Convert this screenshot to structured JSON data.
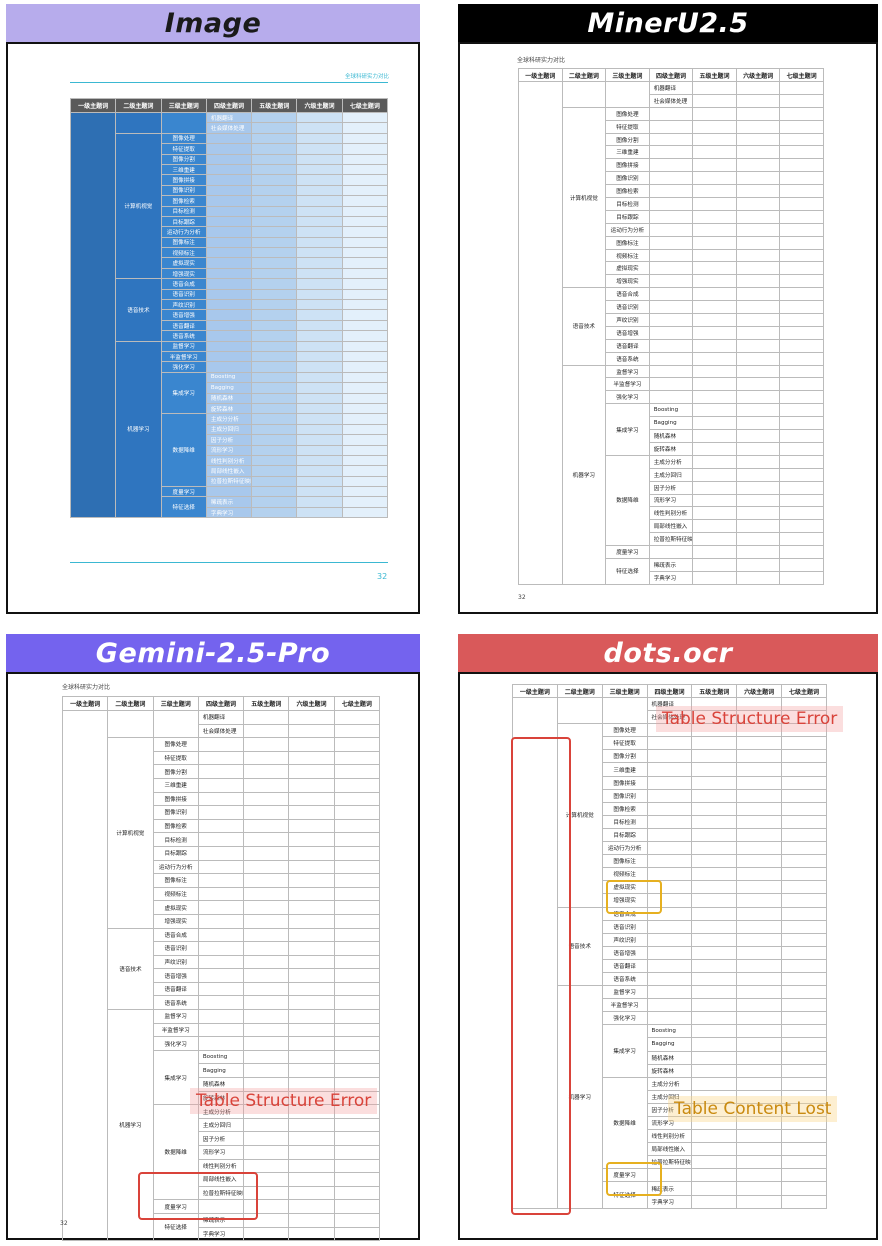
{
  "panels": [
    {
      "id": "image",
      "label": "Image",
      "bar_color": "#b7acec",
      "text_color": "#1a1a1a"
    },
    {
      "id": "mineru",
      "label": "MinerU2.5",
      "bar_color": "#000000",
      "text_color": "#ffffff"
    },
    {
      "id": "gemini",
      "label": "Gemini-2.5-Pro",
      "bar_color": "#7463ee",
      "text_color": "#ffffff"
    },
    {
      "id": "dots",
      "label": "dots.ocr",
      "bar_color": "#d9595a",
      "text_color": "#ffffff"
    }
  ],
  "doc": {
    "header_text": "全球科研实力对比",
    "page_number": "32",
    "header_color": "#3bb8d2",
    "columns": [
      "一级主题词",
      "二级主题词",
      "三级主题词",
      "四级主题词",
      "五级主题词",
      "六级主题词",
      "七级主题词"
    ]
  },
  "annotations": {
    "table_structure_error": "Table Structure Error",
    "table_content_lost": "Table Content Lost",
    "red": "#d9433a",
    "yellow": "#e6b020"
  },
  "table_rows": [
    {
      "l2": "",
      "l3": "",
      "l4": "机器翻译"
    },
    {
      "l2": "",
      "l3": "",
      "l4": "社会媒体处理"
    },
    {
      "l2": "计算机视觉",
      "l3": "图像处理",
      "l4": ""
    },
    {
      "l2": "计算机视觉",
      "l3": "特征提取",
      "l4": ""
    },
    {
      "l2": "计算机视觉",
      "l3": "图像分割",
      "l4": ""
    },
    {
      "l2": "计算机视觉",
      "l3": "三维重建",
      "l4": ""
    },
    {
      "l2": "计算机视觉",
      "l3": "图像拼接",
      "l4": ""
    },
    {
      "l2": "计算机视觉",
      "l3": "图像识别",
      "l4": ""
    },
    {
      "l2": "计算机视觉",
      "l3": "图像检索",
      "l4": ""
    },
    {
      "l2": "计算机视觉",
      "l3": "目标检测",
      "l4": ""
    },
    {
      "l2": "计算机视觉",
      "l3": "目标跟踪",
      "l4": ""
    },
    {
      "l2": "计算机视觉",
      "l3": "运动行为分析",
      "l4": ""
    },
    {
      "l2": "计算机视觉",
      "l3": "图像标注",
      "l4": ""
    },
    {
      "l2": "计算机视觉",
      "l3": "视频标注",
      "l4": ""
    },
    {
      "l2": "计算机视觉",
      "l3": "虚拟现实",
      "l4": ""
    },
    {
      "l2": "计算机视觉",
      "l3": "增强现实",
      "l4": ""
    },
    {
      "l2": "语音技术",
      "l3": "语音合成",
      "l4": ""
    },
    {
      "l2": "语音技术",
      "l3": "语音识别",
      "l4": ""
    },
    {
      "l2": "语音技术",
      "l3": "声纹识别",
      "l4": ""
    },
    {
      "l2": "语音技术",
      "l3": "语音增强",
      "l4": ""
    },
    {
      "l2": "语音技术",
      "l3": "语音翻译",
      "l4": ""
    },
    {
      "l2": "语音技术",
      "l3": "语音系统",
      "l4": ""
    },
    {
      "l2": "机器学习",
      "l3": "监督学习",
      "l4": ""
    },
    {
      "l2": "机器学习",
      "l3": "半监督学习",
      "l4": ""
    },
    {
      "l2": "机器学习",
      "l3": "强化学习",
      "l4": ""
    },
    {
      "l2": "机器学习",
      "l3": "集成学习",
      "l4": "Boosting"
    },
    {
      "l2": "机器学习",
      "l3": "集成学习",
      "l4": "Bagging"
    },
    {
      "l2": "机器学习",
      "l3": "集成学习",
      "l4": "随机森林"
    },
    {
      "l2": "机器学习",
      "l3": "集成学习",
      "l4": "旋转森林"
    },
    {
      "l2": "机器学习",
      "l3": "数据降维",
      "l4": "主成分分析"
    },
    {
      "l2": "机器学习",
      "l3": "数据降维",
      "l4": "主成分回归"
    },
    {
      "l2": "机器学习",
      "l3": "数据降维",
      "l4": "因子分析"
    },
    {
      "l2": "机器学习",
      "l3": "数据降维",
      "l4": "流形学习"
    },
    {
      "l2": "机器学习",
      "l3": "数据降维",
      "l4": "线性判别分析"
    },
    {
      "l2": "机器学习",
      "l3": "数据降维",
      "l4": "局部线性嵌入"
    },
    {
      "l2": "机器学习",
      "l3": "数据降维",
      "l4": "拉普拉斯特征映射"
    },
    {
      "l2": "机器学习",
      "l3": "度量学习",
      "l4": ""
    },
    {
      "l2": "机器学习",
      "l3": "特征选择",
      "l4": "稀疏表示"
    },
    {
      "l2": "机器学习",
      "l3": "特征选择",
      "l4": "字典学习"
    }
  ]
}
